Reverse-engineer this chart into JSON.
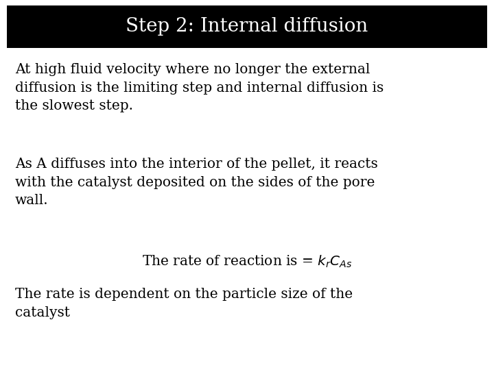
{
  "title": "Step 2: Internal diffusion",
  "title_bg": "#000000",
  "title_color": "#ffffff",
  "title_fontsize": 20,
  "body_fontsize": 14.5,
  "bg_color": "#ffffff",
  "text_color": "#000000",
  "para1": "At high fluid velocity where no longer the external\ndiffusion is the limiting step and internal diffusion is\nthe slowest step.",
  "para2": "As A diffuses into the interior of the pellet, it reacts\nwith the catalyst deposited on the sides of the pore\nwall.",
  "para3_prefix": "The rate of reaction is = ",
  "para4": "The rate is dependent on the particle size of the\ncatalyst"
}
